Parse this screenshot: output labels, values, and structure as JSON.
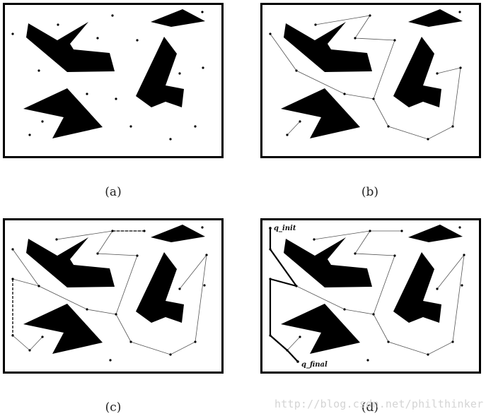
{
  "captions": [
    "(a)",
    "(b)",
    "(c)",
    "(d)"
  ],
  "labels": {
    "start": "q_init",
    "goal": "q_final"
  },
  "watermark": "http://blog.csdn.net/philthinker",
  "colors": {
    "obstacle": "#000000",
    "frame": "#000000",
    "edge": "#555555",
    "path": "#000000"
  }
}
